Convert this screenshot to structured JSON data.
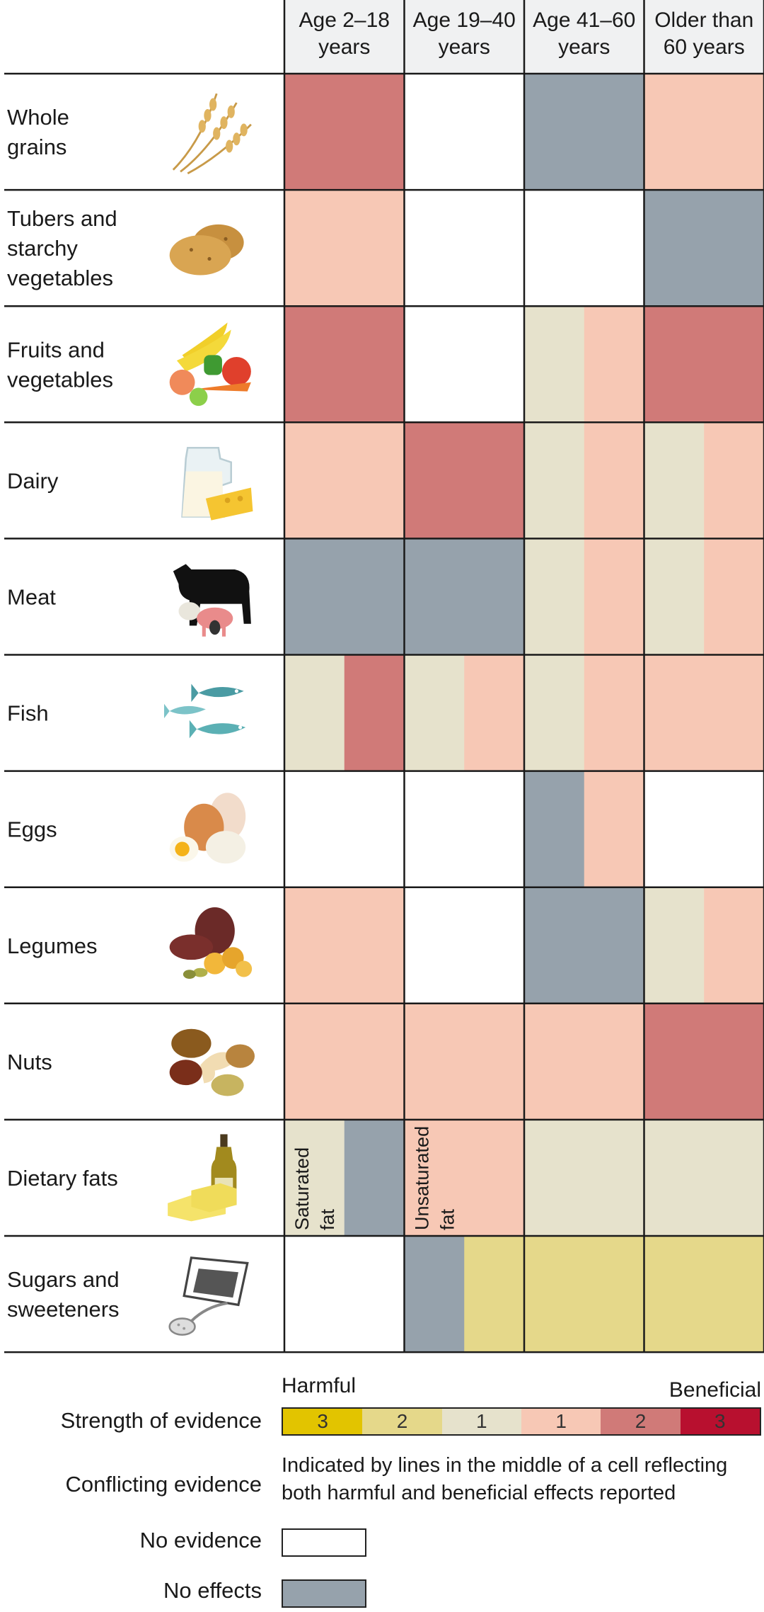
{
  "chart_data": {
    "type": "heatmap",
    "columns": [
      "Age 2–18 years",
      "Age 19–40 years",
      "Age 41–60 years",
      "Older than 60 years"
    ],
    "rows": [
      "Whole grains",
      "Tubers and starchy vegetables",
      "Fruits and vegetables",
      "Dairy",
      "Meat",
      "Fish",
      "Eggs",
      "Legumes",
      "Nuts",
      "Dietary fats",
      "Sugars and sweeteners"
    ],
    "scale": {
      "H3": -3,
      "H2": -2,
      "H1": -1,
      "B1": 1,
      "B2": 2,
      "B3": 3,
      "NE": "no evidence",
      "NF": "no effects"
    },
    "cells": [
      [
        [
          "B2"
        ],
        [
          "NE"
        ],
        [
          "NF"
        ],
        [
          "B1"
        ]
      ],
      [
        [
          "B1"
        ],
        [
          "NE"
        ],
        [
          "NE"
        ],
        [
          "NF"
        ]
      ],
      [
        [
          "B2"
        ],
        [
          "NE"
        ],
        [
          "H1",
          "B1"
        ],
        [
          "B2"
        ]
      ],
      [
        [
          "B1"
        ],
        [
          "B2"
        ],
        [
          "H1",
          "B1"
        ],
        [
          "H1",
          "B1"
        ]
      ],
      [
        [
          "NF"
        ],
        [
          "NF"
        ],
        [
          "H1",
          "B1"
        ],
        [
          "H1",
          "B1"
        ]
      ],
      [
        [
          "H1",
          "B2"
        ],
        [
          "H1",
          "B1"
        ],
        [
          "H1",
          "B1"
        ],
        [
          "B1"
        ]
      ],
      [
        [
          "NE"
        ],
        [
          "NE"
        ],
        [
          "NF",
          "B1"
        ],
        [
          "NE"
        ]
      ],
      [
        [
          "B1"
        ],
        [
          "NE"
        ],
        [
          "NF"
        ],
        [
          "H1",
          "B1"
        ]
      ],
      [
        [
          "B1"
        ],
        [
          "B1"
        ],
        [
          "B1"
        ],
        [
          "B2"
        ]
      ],
      [
        [
          "H1",
          "NF"
        ],
        [
          "B1"
        ],
        [
          "H1"
        ],
        [
          "H1"
        ]
      ],
      [
        [
          "NE"
        ],
        [
          "NF",
          "H2"
        ],
        [
          "H2"
        ],
        [
          "H2"
        ]
      ]
    ],
    "cell_notes": [
      {
        "row": "Dietary fats",
        "column": "Age 2–18 years",
        "text": [
          "Saturated",
          "fat"
        ]
      },
      {
        "row": "Dietary fats",
        "column": "Age 19–40 years",
        "text": [
          "Unsaturated",
          "fat"
        ]
      }
    ]
  },
  "colors": {
    "H3": "#e2c400",
    "H2": "#e5d88a",
    "H1": "#e6e2cc",
    "B1": "#f7c8b5",
    "B2": "#d07a78",
    "B3": "#b8102f",
    "NE": "#ffffff",
    "NF": "#96a2ac"
  },
  "legend": {
    "harmful": "Harmful",
    "beneficial": "Beneficial",
    "strength_label": "Strength of evidence",
    "scale_numbers": [
      "3",
      "2",
      "1",
      "1",
      "2",
      "3"
    ],
    "conflicting_label": "Conflicting evidence",
    "conflicting_text": "Indicated by lines in the middle of a cell reflecting both harmful and beneficial effects reported",
    "no_evidence_label": "No evidence",
    "no_effects_label": "No effects"
  },
  "icons": [
    "wheat-icon",
    "potato-icon",
    "fruits-vegetables-icon",
    "dairy-icon",
    "livestock-icon",
    "fish-icon",
    "eggs-icon",
    "legumes-icon",
    "nuts-icon",
    "oil-butter-icon",
    "sugar-packet-icon"
  ]
}
